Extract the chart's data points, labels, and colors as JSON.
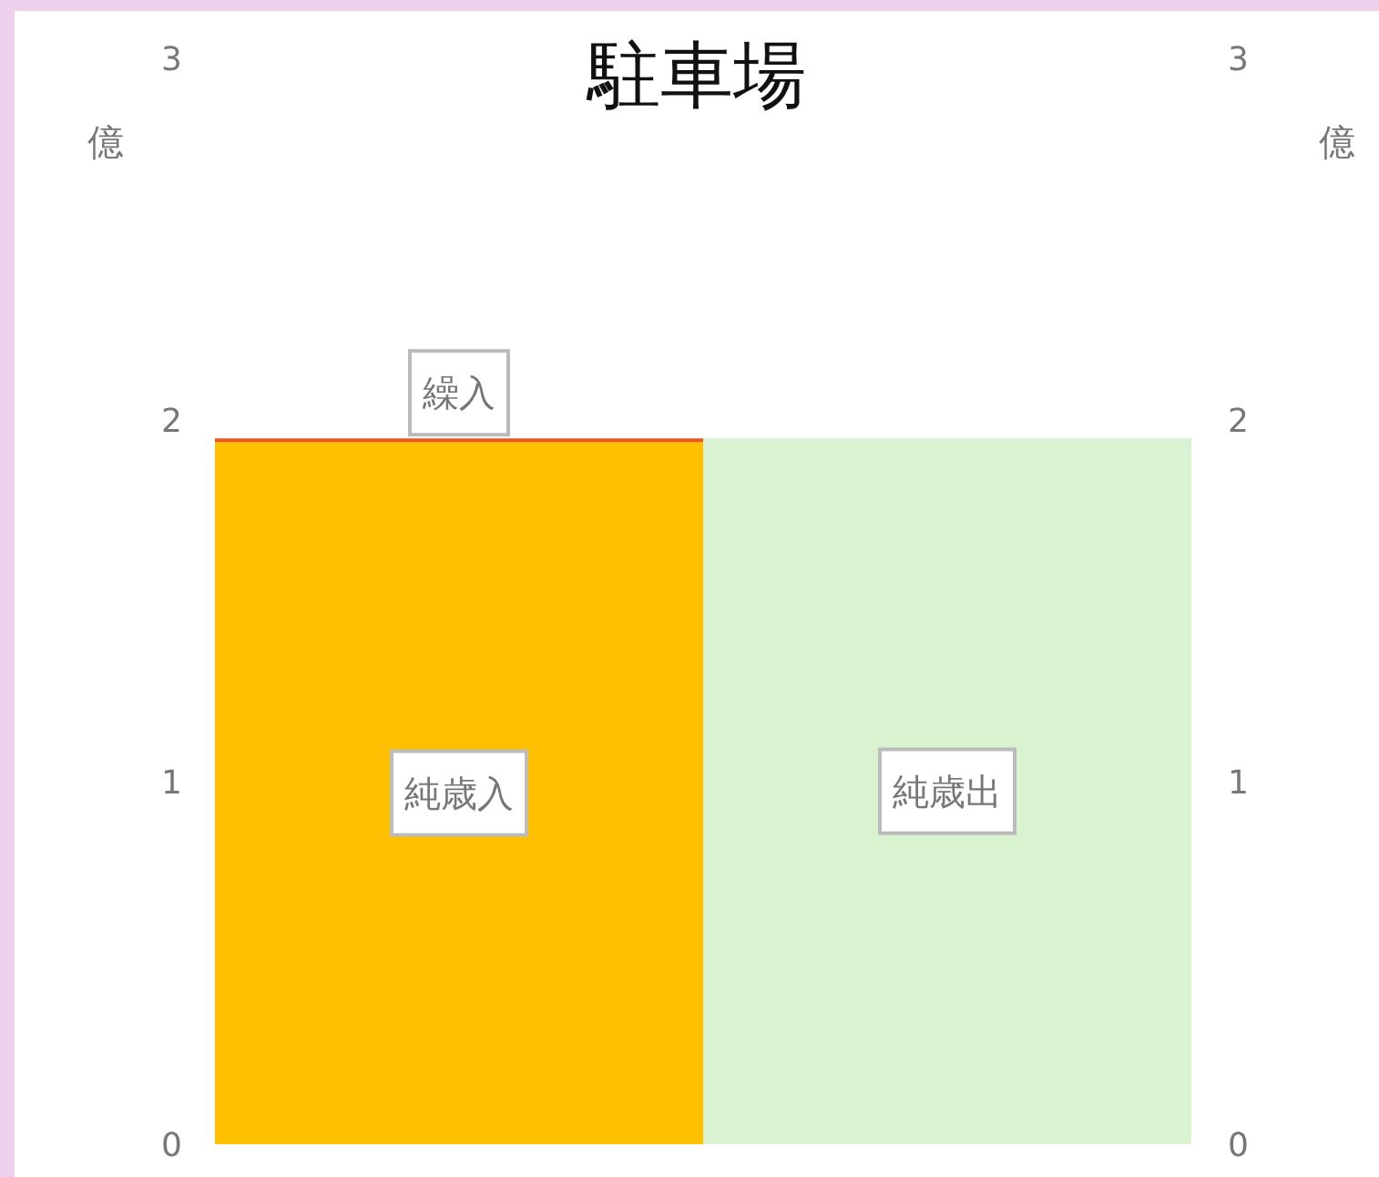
{
  "chart_data": {
    "type": "bar",
    "title": "駐車場",
    "ylabel": "億",
    "y2label": "億",
    "categories": [
      null,
      null
    ],
    "stacked": true,
    "series": [
      {
        "name": "純歳入",
        "color": "#ffc000",
        "values": [
          1.94,
          null
        ]
      },
      {
        "name": "繰入",
        "color": "#f4511e",
        "values": [
          0.01,
          null
        ]
      },
      {
        "name": "純歳出",
        "color": "#d9f2d0",
        "values": [
          null,
          1.95
        ]
      }
    ],
    "ylim": [
      0,
      3
    ],
    "yticks": [
      0,
      1,
      2,
      3
    ],
    "y2lim": [
      0,
      3
    ],
    "y2ticks": [
      0,
      1,
      2,
      3
    ],
    "tick_labels": "y",
    "grid": false,
    "legend": false
  }
}
